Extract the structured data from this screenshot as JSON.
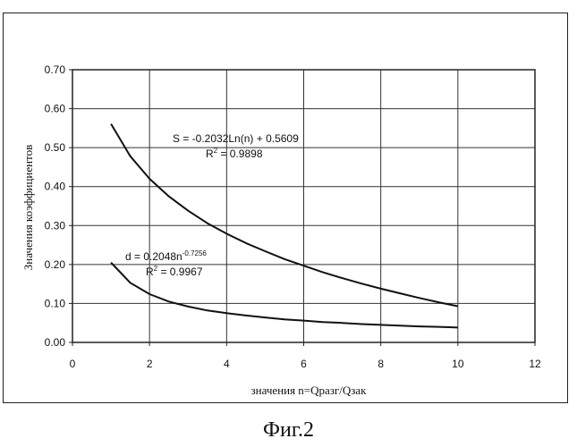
{
  "caption": "Фиг.2",
  "chart_data": {
    "type": "line",
    "xlabel": "значения n=Qразг/Qзак",
    "ylabel": "Значения коэффициентов",
    "xlim": [
      0,
      12
    ],
    "ylim": [
      0,
      0.7
    ],
    "x_ticks": [
      "0",
      "2",
      "4",
      "6",
      "8",
      "10",
      "12"
    ],
    "y_ticks": [
      "0.00",
      "0.10",
      "0.20",
      "0.30",
      "0.40",
      "0.50",
      "0.60",
      "0.70"
    ],
    "grid": true,
    "series": [
      {
        "name": "S",
        "x": [
          1,
          1.5,
          2,
          2.5,
          3,
          3.5,
          4,
          4.5,
          5,
          5.5,
          6,
          6.5,
          7,
          7.5,
          8,
          8.5,
          9,
          9.5,
          10
        ],
        "values": [
          0.561,
          0.478,
          0.42,
          0.375,
          0.338,
          0.306,
          0.279,
          0.255,
          0.234,
          0.214,
          0.197,
          0.18,
          0.165,
          0.151,
          0.138,
          0.126,
          0.114,
          0.103,
          0.093
        ],
        "color": "#111111"
      },
      {
        "name": "d",
        "x": [
          1,
          1.5,
          2,
          2.5,
          3,
          3.5,
          4,
          4.5,
          5,
          5.5,
          6,
          6.5,
          7,
          7.5,
          8,
          8.5,
          9,
          9.5,
          10
        ],
        "values": [
          0.205,
          0.153,
          0.124,
          0.105,
          0.092,
          0.082,
          0.075,
          0.069,
          0.064,
          0.059,
          0.056,
          0.052,
          0.05,
          0.047,
          0.045,
          0.043,
          0.041,
          0.04,
          0.038
        ],
        "color": "#111111"
      }
    ],
    "annotations": [
      {
        "id": "s-eq",
        "text": "S = -0.2032Ln(n) + 0.5609",
        "r2_label": "R",
        "r2_exp": "2",
        "r2_value": " = 0.9898"
      },
      {
        "id": "d-eq",
        "text": "d = 0.2048n",
        "text_exp": "-0.7256",
        "r2_label": "R",
        "r2_exp": "2",
        "r2_value": " = 0.9967"
      }
    ]
  }
}
